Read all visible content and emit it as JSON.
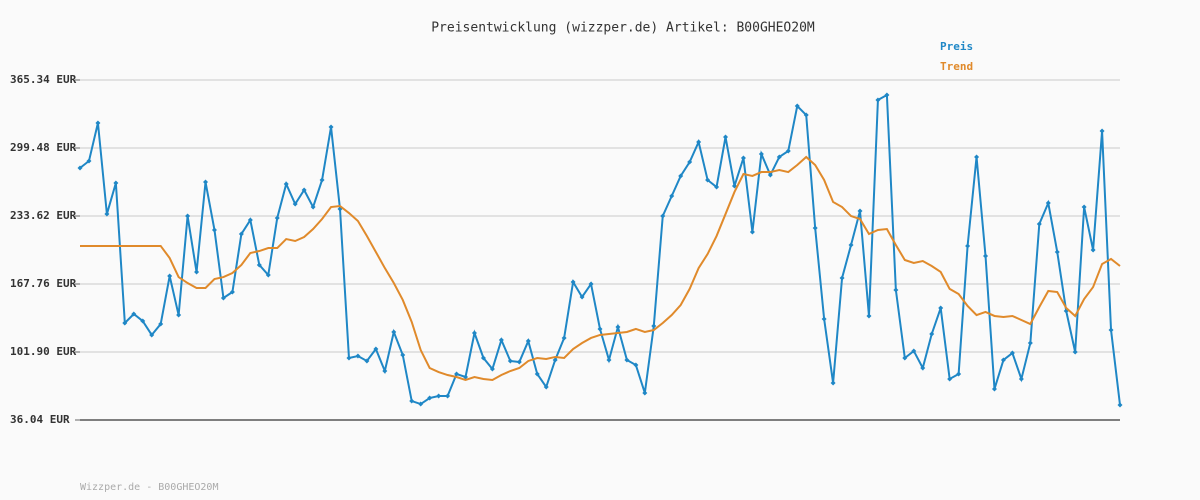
{
  "chart_data": {
    "type": "line",
    "title": "Preisentwicklung (wizzper.de) Artikel: B00GHEO20M",
    "footer": "Wizzper.de - B00GHEO20M",
    "ylim": [
      36.04,
      365.34
    ],
    "yticks": [
      {
        "value": 36.04,
        "label": "36.04 EUR"
      },
      {
        "value": 101.9,
        "label": "101.90 EUR"
      },
      {
        "value": 167.76,
        "label": "167.76 EUR"
      },
      {
        "value": 233.62,
        "label": "233.62 EUR"
      },
      {
        "value": 299.48,
        "label": "299.48 EUR"
      },
      {
        "value": 365.34,
        "label": "365.34 EUR"
      }
    ],
    "grid": true,
    "legend": "top-right",
    "series": [
      {
        "name": "Preis",
        "color": "#1f87c6",
        "markers": true,
        "values": [
          280.1,
          286.9,
          323.7,
          235.5,
          265.6,
          130.0,
          138.7,
          131.9,
          118.4,
          129.0,
          175.5,
          137.7,
          233.6,
          179.4,
          266.5,
          220.1,
          154.2,
          160.0,
          216.2,
          229.7,
          186.2,
          176.5,
          231.7,
          264.6,
          245.2,
          258.8,
          242.3,
          268.5,
          319.8,
          240.4,
          96.1,
          98.0,
          93.2,
          104.8,
          83.5,
          121.3,
          99.0,
          54.4,
          51.5,
          57.3,
          59.3,
          59.3,
          80.6,
          77.7,
          120.3,
          96.1,
          85.4,
          113.5,
          93.2,
          92.2,
          112.5,
          80.6,
          68.0,
          94.2,
          115.5,
          169.7,
          155.2,
          167.8,
          124.2,
          94.2,
          126.1,
          94.2,
          89.3,
          62.2,
          127.1,
          233.6,
          253.0,
          272.4,
          285.9,
          305.3,
          268.5,
          261.7,
          310.1,
          262.7,
          289.8,
          218.1,
          293.7,
          273.3,
          290.8,
          296.6,
          340.1,
          331.4,
          222.0,
          133.9,
          71.9,
          173.6,
          205.5,
          238.5,
          136.8,
          346.0,
          350.8,
          162.0,
          96.1,
          102.9,
          86.4,
          119.3,
          144.5,
          75.8,
          80.6,
          204.6,
          290.8,
          194.9,
          66.1,
          94.2,
          100.9,
          75.8,
          110.6,
          225.9,
          246.2,
          198.8,
          141.6,
          101.9,
          242.3,
          200.7,
          315.9,
          123.2,
          50.6
        ]
      },
      {
        "name": "Trend",
        "color": "#e08a2b",
        "markers": false,
        "values": [
          204.6,
          204.6,
          204.6,
          204.6,
          204.6,
          204.6,
          204.6,
          204.6,
          204.6,
          204.6,
          192.9,
          174.5,
          168.7,
          163.9,
          163.9,
          172.6,
          174.5,
          178.4,
          186.2,
          197.8,
          199.7,
          202.6,
          202.6,
          211.3,
          209.4,
          213.3,
          221.0,
          230.7,
          242.3,
          243.3,
          236.5,
          228.8,
          214.2,
          198.8,
          183.2,
          168.7,
          152.3,
          131.0,
          103.8,
          86.4,
          82.5,
          79.6,
          77.7,
          74.8,
          77.7,
          75.8,
          74.8,
          79.6,
          83.5,
          86.4,
          93.2,
          96.1,
          95.1,
          97.1,
          96.1,
          104.8,
          110.6,
          115.5,
          118.4,
          119.3,
          120.3,
          121.3,
          124.2,
          121.3,
          123.2,
          130.0,
          137.7,
          147.4,
          163.0,
          183.2,
          196.8,
          214.2,
          235.5,
          256.9,
          274.3,
          272.4,
          276.2,
          276.2,
          278.2,
          276.2,
          283.0,
          290.8,
          283.0,
          268.5,
          247.2,
          242.3,
          233.6,
          230.7,
          216.2,
          220.1,
          221.0,
          205.5,
          191.0,
          188.1,
          190.0,
          185.2,
          179.4,
          163.0,
          158.1,
          146.5,
          137.7,
          140.7,
          136.8,
          135.8,
          136.8,
          132.9,
          129.0,
          145.5,
          161.0,
          160.0,
          144.5,
          136.8,
          153.2,
          164.8,
          187.1,
          192.0,
          185.2
        ]
      }
    ]
  }
}
